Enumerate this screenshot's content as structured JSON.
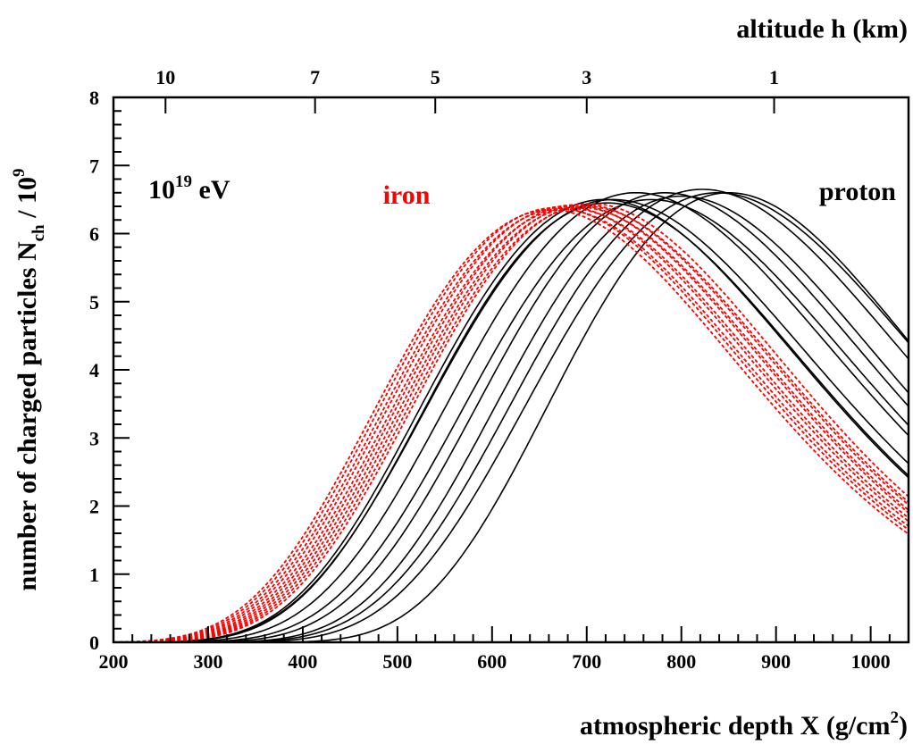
{
  "chart_data": {
    "type": "line",
    "title": "",
    "energy_label": {
      "base": "10",
      "exponent": "19",
      "unit": " eV"
    },
    "xlabel": {
      "text": "atmospheric depth X (g/cm",
      "sup": "2",
      "close": ")"
    },
    "ylabel": {
      "text": "number of charged particles N",
      "sub": "ch",
      "after": " / 10",
      "sup": "9"
    },
    "x2label": "altitude h (km)",
    "xlim": [
      200,
      1040
    ],
    "ylim": [
      0,
      8
    ],
    "x_ticks": [
      {
        "value": 200,
        "label": "200"
      },
      {
        "value": 300,
        "label": "300"
      },
      {
        "value": 400,
        "label": "400"
      },
      {
        "value": 500,
        "label": "500"
      },
      {
        "value": 600,
        "label": "600"
      },
      {
        "value": 700,
        "label": "700"
      },
      {
        "value": 800,
        "label": "800"
      },
      {
        "value": 900,
        "label": "900"
      },
      {
        "value": 1000,
        "label": "1000"
      }
    ],
    "y_ticks": [
      {
        "value": 0,
        "label": "0"
      },
      {
        "value": 1,
        "label": "1"
      },
      {
        "value": 2,
        "label": "2"
      },
      {
        "value": 3,
        "label": "3"
      },
      {
        "value": 4,
        "label": "4"
      },
      {
        "value": 5,
        "label": "5"
      },
      {
        "value": 6,
        "label": "6"
      },
      {
        "value": 7,
        "label": "7"
      },
      {
        "value": 8,
        "label": "8"
      }
    ],
    "altitude_ticks": [
      {
        "depth": 255,
        "label": "10"
      },
      {
        "depth": 413,
        "label": "7"
      },
      {
        "depth": 540,
        "label": "5"
      },
      {
        "depth": 700,
        "label": "3"
      },
      {
        "depth": 898,
        "label": "1"
      }
    ],
    "grid": false,
    "legend": [
      {
        "name": "iron",
        "color": "#ff0000",
        "style": "dashed",
        "position": "top-center"
      },
      {
        "name": "proton",
        "color": "#000000",
        "style": "solid",
        "position": "top-right"
      }
    ],
    "series": [
      {
        "group": "proton",
        "color": "#000000",
        "style": "solid",
        "profile": {
          "X1": 143,
          "Nmax": 6.5,
          "Xmax": 718,
          "lambda": 67
        }
      },
      {
        "group": "proton",
        "color": "#000000",
        "style": "solid",
        "profile": {
          "X1": 148,
          "Nmax": 6.45,
          "Xmax": 722,
          "lambda": 67
        }
      },
      {
        "group": "proton",
        "color": "#000000",
        "style": "solid",
        "profile": {
          "X1": 140,
          "Nmax": 6.5,
          "Xmax": 728,
          "lambda": 68
        }
      },
      {
        "group": "proton",
        "color": "#000000",
        "style": "solid",
        "profile": {
          "X1": 153,
          "Nmax": 6.6,
          "Xmax": 752,
          "lambda": 68
        }
      },
      {
        "group": "proton",
        "color": "#000000",
        "style": "solid",
        "profile": {
          "X1": 170,
          "Nmax": 6.5,
          "Xmax": 768,
          "lambda": 67
        }
      },
      {
        "group": "proton",
        "color": "#000000",
        "style": "solid",
        "profile": {
          "X1": 185,
          "Nmax": 6.6,
          "Xmax": 783,
          "lambda": 67
        }
      },
      {
        "group": "proton",
        "color": "#000000",
        "style": "solid",
        "profile": {
          "X1": 205,
          "Nmax": 6.55,
          "Xmax": 800,
          "lambda": 66
        }
      },
      {
        "group": "proton",
        "color": "#000000",
        "style": "solid",
        "profile": {
          "X1": 208,
          "Nmax": 6.65,
          "Xmax": 822,
          "lambda": 67
        }
      },
      {
        "group": "proton",
        "color": "#000000",
        "style": "solid",
        "profile": {
          "X1": 220,
          "Nmax": 6.6,
          "Xmax": 838,
          "lambda": 67
        }
      },
      {
        "group": "proton",
        "color": "#000000",
        "style": "solid",
        "profile": {
          "X1": 280,
          "Nmax": 6.6,
          "Xmax": 850,
          "lambda": 65
        }
      },
      {
        "group": "iron",
        "color": "#ff0000",
        "style": "dashed",
        "profile": {
          "X1": 98,
          "Nmax": 6.35,
          "Xmax": 662,
          "lambda": 64
        }
      },
      {
        "group": "iron",
        "color": "#ff0000",
        "style": "dashed",
        "profile": {
          "X1": 101,
          "Nmax": 6.38,
          "Xmax": 667,
          "lambda": 64
        }
      },
      {
        "group": "iron",
        "color": "#ff0000",
        "style": "dashed",
        "profile": {
          "X1": 104,
          "Nmax": 6.36,
          "Xmax": 672,
          "lambda": 64
        }
      },
      {
        "group": "iron",
        "color": "#ff0000",
        "style": "dashed",
        "profile": {
          "X1": 107,
          "Nmax": 6.4,
          "Xmax": 677,
          "lambda": 64
        }
      },
      {
        "group": "iron",
        "color": "#ff0000",
        "style": "dashed",
        "profile": {
          "X1": 110,
          "Nmax": 6.37,
          "Xmax": 682,
          "lambda": 64
        }
      },
      {
        "group": "iron",
        "color": "#ff0000",
        "style": "dashed",
        "profile": {
          "X1": 113,
          "Nmax": 6.42,
          "Xmax": 687,
          "lambda": 64
        }
      },
      {
        "group": "iron",
        "color": "#ff0000",
        "style": "dashed",
        "profile": {
          "X1": 116,
          "Nmax": 6.39,
          "Xmax": 691,
          "lambda": 64
        }
      },
      {
        "group": "iron",
        "color": "#ff0000",
        "style": "dashed",
        "profile": {
          "X1": 119,
          "Nmax": 6.43,
          "Xmax": 696,
          "lambda": 64
        }
      },
      {
        "group": "iron",
        "color": "#ff0000",
        "style": "dashed",
        "profile": {
          "X1": 122,
          "Nmax": 6.4,
          "Xmax": 700,
          "lambda": 64
        }
      },
      {
        "group": "iron",
        "color": "#ff0000",
        "style": "dashed",
        "profile": {
          "X1": 125,
          "Nmax": 6.44,
          "Xmax": 705,
          "lambda": 64
        }
      }
    ]
  }
}
